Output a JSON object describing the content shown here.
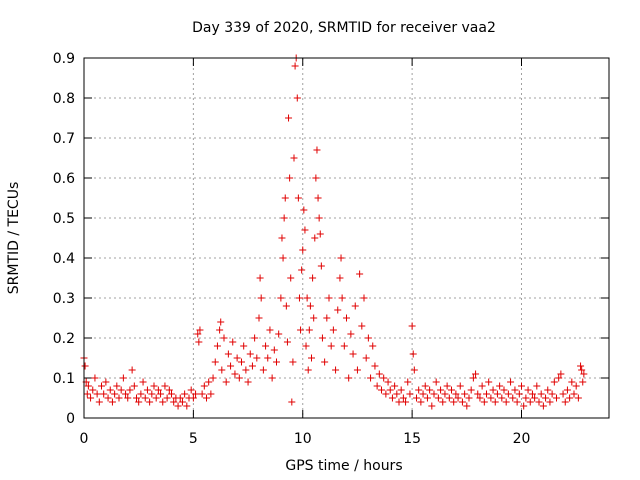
{
  "chart_data": {
    "type": "scatter",
    "title": "Day 339 of 2020, SRMTID for receiver vaa2",
    "xlabel": "GPS time / hours",
    "ylabel": "SRMTID / TECUs",
    "xlim": [
      0,
      24
    ],
    "ylim": [
      0,
      0.9
    ],
    "xticks": [
      0,
      5,
      10,
      15,
      20
    ],
    "yticks": [
      0,
      0.1,
      0.2,
      0.3,
      0.4,
      0.5,
      0.6,
      0.7,
      0.8,
      0.9
    ],
    "grid": true,
    "legend": "none",
    "marker": "+",
    "color": "#e00000",
    "series": [
      {
        "name": "vaa2",
        "points": [
          [
            0.0,
            0.15
          ],
          [
            0.05,
            0.13
          ],
          [
            0.1,
            0.09
          ],
          [
            0.15,
            0.06
          ],
          [
            0.2,
            0.08
          ],
          [
            0.3,
            0.05
          ],
          [
            0.4,
            0.07
          ],
          [
            0.5,
            0.1
          ],
          [
            0.6,
            0.06
          ],
          [
            0.7,
            0.04
          ],
          [
            0.8,
            0.08
          ],
          [
            0.9,
            0.06
          ],
          [
            1.0,
            0.09
          ],
          [
            1.1,
            0.05
          ],
          [
            1.2,
            0.07
          ],
          [
            1.3,
            0.04
          ],
          [
            1.4,
            0.06
          ],
          [
            1.5,
            0.08
          ],
          [
            1.6,
            0.05
          ],
          [
            1.7,
            0.07
          ],
          [
            1.8,
            0.1
          ],
          [
            1.9,
            0.06
          ],
          [
            2.0,
            0.05
          ],
          [
            2.1,
            0.07
          ],
          [
            2.2,
            0.12
          ],
          [
            2.3,
            0.08
          ],
          [
            2.4,
            0.05
          ],
          [
            2.5,
            0.04
          ],
          [
            2.6,
            0.06
          ],
          [
            2.7,
            0.09
          ],
          [
            2.8,
            0.05
          ],
          [
            2.9,
            0.07
          ],
          [
            3.0,
            0.04
          ],
          [
            3.1,
            0.06
          ],
          [
            3.2,
            0.08
          ],
          [
            3.3,
            0.05
          ],
          [
            3.4,
            0.07
          ],
          [
            3.5,
            0.06
          ],
          [
            3.6,
            0.04
          ],
          [
            3.7,
            0.08
          ],
          [
            3.8,
            0.05
          ],
          [
            3.9,
            0.07
          ],
          [
            4.0,
            0.06
          ],
          [
            4.1,
            0.04
          ],
          [
            4.2,
            0.05
          ],
          [
            4.3,
            0.03
          ],
          [
            4.4,
            0.05
          ],
          [
            4.5,
            0.04
          ],
          [
            4.6,
            0.06
          ],
          [
            4.7,
            0.03
          ],
          [
            4.8,
            0.05
          ],
          [
            4.9,
            0.07
          ],
          [
            5.0,
            0.05
          ],
          [
            5.1,
            0.06
          ],
          [
            5.2,
            0.21
          ],
          [
            5.25,
            0.19
          ],
          [
            5.3,
            0.22
          ],
          [
            5.4,
            0.06
          ],
          [
            5.5,
            0.08
          ],
          [
            5.6,
            0.05
          ],
          [
            5.7,
            0.09
          ],
          [
            5.8,
            0.06
          ],
          [
            5.9,
            0.1
          ],
          [
            6.0,
            0.14
          ],
          [
            6.1,
            0.18
          ],
          [
            6.2,
            0.22
          ],
          [
            6.25,
            0.24
          ],
          [
            6.3,
            0.12
          ],
          [
            6.4,
            0.2
          ],
          [
            6.5,
            0.09
          ],
          [
            6.6,
            0.16
          ],
          [
            6.7,
            0.13
          ],
          [
            6.8,
            0.19
          ],
          [
            6.9,
            0.11
          ],
          [
            7.0,
            0.15
          ],
          [
            7.1,
            0.1
          ],
          [
            7.2,
            0.14
          ],
          [
            7.3,
            0.18
          ],
          [
            7.4,
            0.12
          ],
          [
            7.5,
            0.09
          ],
          [
            7.6,
            0.16
          ],
          [
            7.7,
            0.13
          ],
          [
            7.8,
            0.2
          ],
          [
            7.9,
            0.15
          ],
          [
            8.0,
            0.25
          ],
          [
            8.05,
            0.35
          ],
          [
            8.1,
            0.3
          ],
          [
            8.2,
            0.12
          ],
          [
            8.3,
            0.18
          ],
          [
            8.4,
            0.15
          ],
          [
            8.5,
            0.22
          ],
          [
            8.6,
            0.1
          ],
          [
            8.7,
            0.17
          ],
          [
            8.8,
            0.14
          ],
          [
            8.9,
            0.21
          ],
          [
            9.0,
            0.3
          ],
          [
            9.05,
            0.45
          ],
          [
            9.1,
            0.4
          ],
          [
            9.15,
            0.5
          ],
          [
            9.2,
            0.55
          ],
          [
            9.25,
            0.28
          ],
          [
            9.3,
            0.19
          ],
          [
            9.35,
            0.75
          ],
          [
            9.4,
            0.6
          ],
          [
            9.45,
            0.35
          ],
          [
            9.5,
            0.04
          ],
          [
            9.55,
            0.14
          ],
          [
            9.6,
            0.65
          ],
          [
            9.65,
            0.88
          ],
          [
            9.7,
            0.9
          ],
          [
            9.75,
            0.8
          ],
          [
            9.8,
            0.55
          ],
          [
            9.85,
            0.3
          ],
          [
            9.9,
            0.22
          ],
          [
            9.95,
            0.37
          ],
          [
            10.0,
            0.42
          ],
          [
            10.05,
            0.52
          ],
          [
            10.1,
            0.47
          ],
          [
            10.15,
            0.18
          ],
          [
            10.2,
            0.3
          ],
          [
            10.25,
            0.12
          ],
          [
            10.3,
            0.22
          ],
          [
            10.35,
            0.28
          ],
          [
            10.4,
            0.15
          ],
          [
            10.45,
            0.35
          ],
          [
            10.5,
            0.25
          ],
          [
            10.55,
            0.45
          ],
          [
            10.6,
            0.6
          ],
          [
            10.65,
            0.67
          ],
          [
            10.7,
            0.55
          ],
          [
            10.75,
            0.5
          ],
          [
            10.8,
            0.46
          ],
          [
            10.85,
            0.38
          ],
          [
            10.9,
            0.2
          ],
          [
            11.0,
            0.14
          ],
          [
            11.1,
            0.25
          ],
          [
            11.2,
            0.3
          ],
          [
            11.3,
            0.18
          ],
          [
            11.4,
            0.22
          ],
          [
            11.5,
            0.12
          ],
          [
            11.6,
            0.27
          ],
          [
            11.7,
            0.35
          ],
          [
            11.75,
            0.4
          ],
          [
            11.8,
            0.3
          ],
          [
            11.9,
            0.18
          ],
          [
            12.0,
            0.25
          ],
          [
            12.1,
            0.1
          ],
          [
            12.2,
            0.21
          ],
          [
            12.3,
            0.16
          ],
          [
            12.4,
            0.28
          ],
          [
            12.5,
            0.12
          ],
          [
            12.6,
            0.36
          ],
          [
            12.7,
            0.23
          ],
          [
            12.8,
            0.3
          ],
          [
            12.9,
            0.15
          ],
          [
            13.0,
            0.2
          ],
          [
            13.1,
            0.1
          ],
          [
            13.2,
            0.18
          ],
          [
            13.3,
            0.13
          ],
          [
            13.4,
            0.08
          ],
          [
            13.5,
            0.11
          ],
          [
            13.6,
            0.07
          ],
          [
            13.7,
            0.1
          ],
          [
            13.8,
            0.06
          ],
          [
            13.9,
            0.09
          ],
          [
            14.0,
            0.07
          ],
          [
            14.1,
            0.05
          ],
          [
            14.2,
            0.08
          ],
          [
            14.3,
            0.06
          ],
          [
            14.4,
            0.04
          ],
          [
            14.5,
            0.07
          ],
          [
            14.6,
            0.05
          ],
          [
            14.7,
            0.04
          ],
          [
            14.8,
            0.09
          ],
          [
            14.9,
            0.06
          ],
          [
            15.0,
            0.23
          ],
          [
            15.05,
            0.16
          ],
          [
            15.1,
            0.12
          ],
          [
            15.2,
            0.05
          ],
          [
            15.3,
            0.07
          ],
          [
            15.4,
            0.04
          ],
          [
            15.5,
            0.06
          ],
          [
            15.6,
            0.08
          ],
          [
            15.7,
            0.05
          ],
          [
            15.8,
            0.07
          ],
          [
            15.9,
            0.03
          ],
          [
            16.0,
            0.06
          ],
          [
            16.1,
            0.09
          ],
          [
            16.2,
            0.05
          ],
          [
            16.3,
            0.07
          ],
          [
            16.4,
            0.04
          ],
          [
            16.5,
            0.06
          ],
          [
            16.6,
            0.08
          ],
          [
            16.7,
            0.05
          ],
          [
            16.8,
            0.07
          ],
          [
            16.9,
            0.04
          ],
          [
            17.0,
            0.06
          ],
          [
            17.1,
            0.05
          ],
          [
            17.2,
            0.08
          ],
          [
            17.3,
            0.04
          ],
          [
            17.4,
            0.06
          ],
          [
            17.5,
            0.03
          ],
          [
            17.6,
            0.05
          ],
          [
            17.7,
            0.07
          ],
          [
            17.8,
            0.1
          ],
          [
            17.9,
            0.11
          ],
          [
            18.0,
            0.06
          ],
          [
            18.1,
            0.05
          ],
          [
            18.2,
            0.08
          ],
          [
            18.3,
            0.04
          ],
          [
            18.4,
            0.06
          ],
          [
            18.5,
            0.09
          ],
          [
            18.6,
            0.05
          ],
          [
            18.7,
            0.07
          ],
          [
            18.8,
            0.04
          ],
          [
            18.9,
            0.06
          ],
          [
            19.0,
            0.08
          ],
          [
            19.1,
            0.05
          ],
          [
            19.2,
            0.07
          ],
          [
            19.3,
            0.04
          ],
          [
            19.4,
            0.06
          ],
          [
            19.5,
            0.09
          ],
          [
            19.6,
            0.05
          ],
          [
            19.7,
            0.07
          ],
          [
            19.8,
            0.04
          ],
          [
            19.9,
            0.06
          ],
          [
            20.0,
            0.08
          ],
          [
            20.1,
            0.03
          ],
          [
            20.2,
            0.05
          ],
          [
            20.3,
            0.07
          ],
          [
            20.4,
            0.04
          ],
          [
            20.5,
            0.06
          ],
          [
            20.6,
            0.05
          ],
          [
            20.7,
            0.08
          ],
          [
            20.8,
            0.04
          ],
          [
            20.9,
            0.06
          ],
          [
            21.0,
            0.03
          ],
          [
            21.1,
            0.05
          ],
          [
            21.2,
            0.07
          ],
          [
            21.3,
            0.04
          ],
          [
            21.4,
            0.06
          ],
          [
            21.5,
            0.09
          ],
          [
            21.6,
            0.05
          ],
          [
            21.7,
            0.1
          ],
          [
            21.8,
            0.11
          ],
          [
            21.9,
            0.06
          ],
          [
            22.0,
            0.04
          ],
          [
            22.1,
            0.07
          ],
          [
            22.2,
            0.05
          ],
          [
            22.3,
            0.09
          ],
          [
            22.4,
            0.06
          ],
          [
            22.5,
            0.08
          ],
          [
            22.6,
            0.05
          ],
          [
            22.7,
            0.13
          ],
          [
            22.75,
            0.12
          ],
          [
            22.8,
            0.09
          ],
          [
            22.85,
            0.11
          ]
        ]
      }
    ]
  }
}
